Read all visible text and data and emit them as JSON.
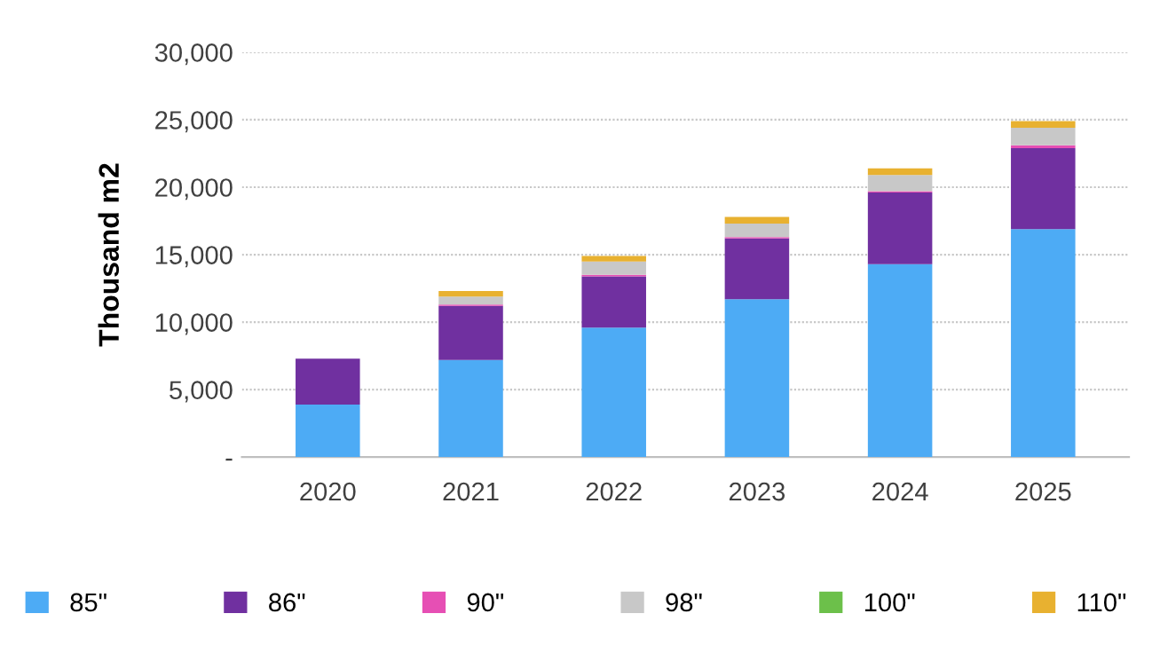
{
  "chart_data": {
    "type": "bar",
    "stacked": true,
    "ylabel": "Thousand m2",
    "categories": [
      "2020",
      "2021",
      "2022",
      "2023",
      "2024",
      "2025"
    ],
    "series": [
      {
        "name": "85\"",
        "color": "#4dabf5",
        "values": [
          3900,
          7200,
          9600,
          11700,
          14300,
          16900
        ]
      },
      {
        "name": "86\"",
        "color": "#7030a0",
        "values": [
          3400,
          4000,
          3800,
          4500,
          5300,
          6000
        ]
      },
      {
        "name": "90\"",
        "color": "#e64fb4",
        "values": [
          0,
          100,
          100,
          100,
          100,
          200
        ]
      },
      {
        "name": "98\"",
        "color": "#c8c8c8",
        "values": [
          0,
          600,
          1000,
          1000,
          1200,
          1300
        ]
      },
      {
        "name": "100\"",
        "color": "#6cc04a",
        "values": [
          0,
          0,
          0,
          0,
          0,
          0
        ]
      },
      {
        "name": "110\"",
        "color": "#e8b130",
        "values": [
          0,
          400,
          400,
          500,
          500,
          500
        ]
      }
    ],
    "ylim": [
      0,
      30000
    ],
    "yticks": [
      {
        "value": 0,
        "label": "-"
      },
      {
        "value": 5000,
        "label": "5,000"
      },
      {
        "value": 10000,
        "label": "10,000"
      },
      {
        "value": 15000,
        "label": "15,000"
      },
      {
        "value": 20000,
        "label": "20,000"
      },
      {
        "value": 25000,
        "label": "25,000"
      },
      {
        "value": 30000,
        "label": "30,000"
      }
    ],
    "grid": "y",
    "legend": "bottom"
  }
}
